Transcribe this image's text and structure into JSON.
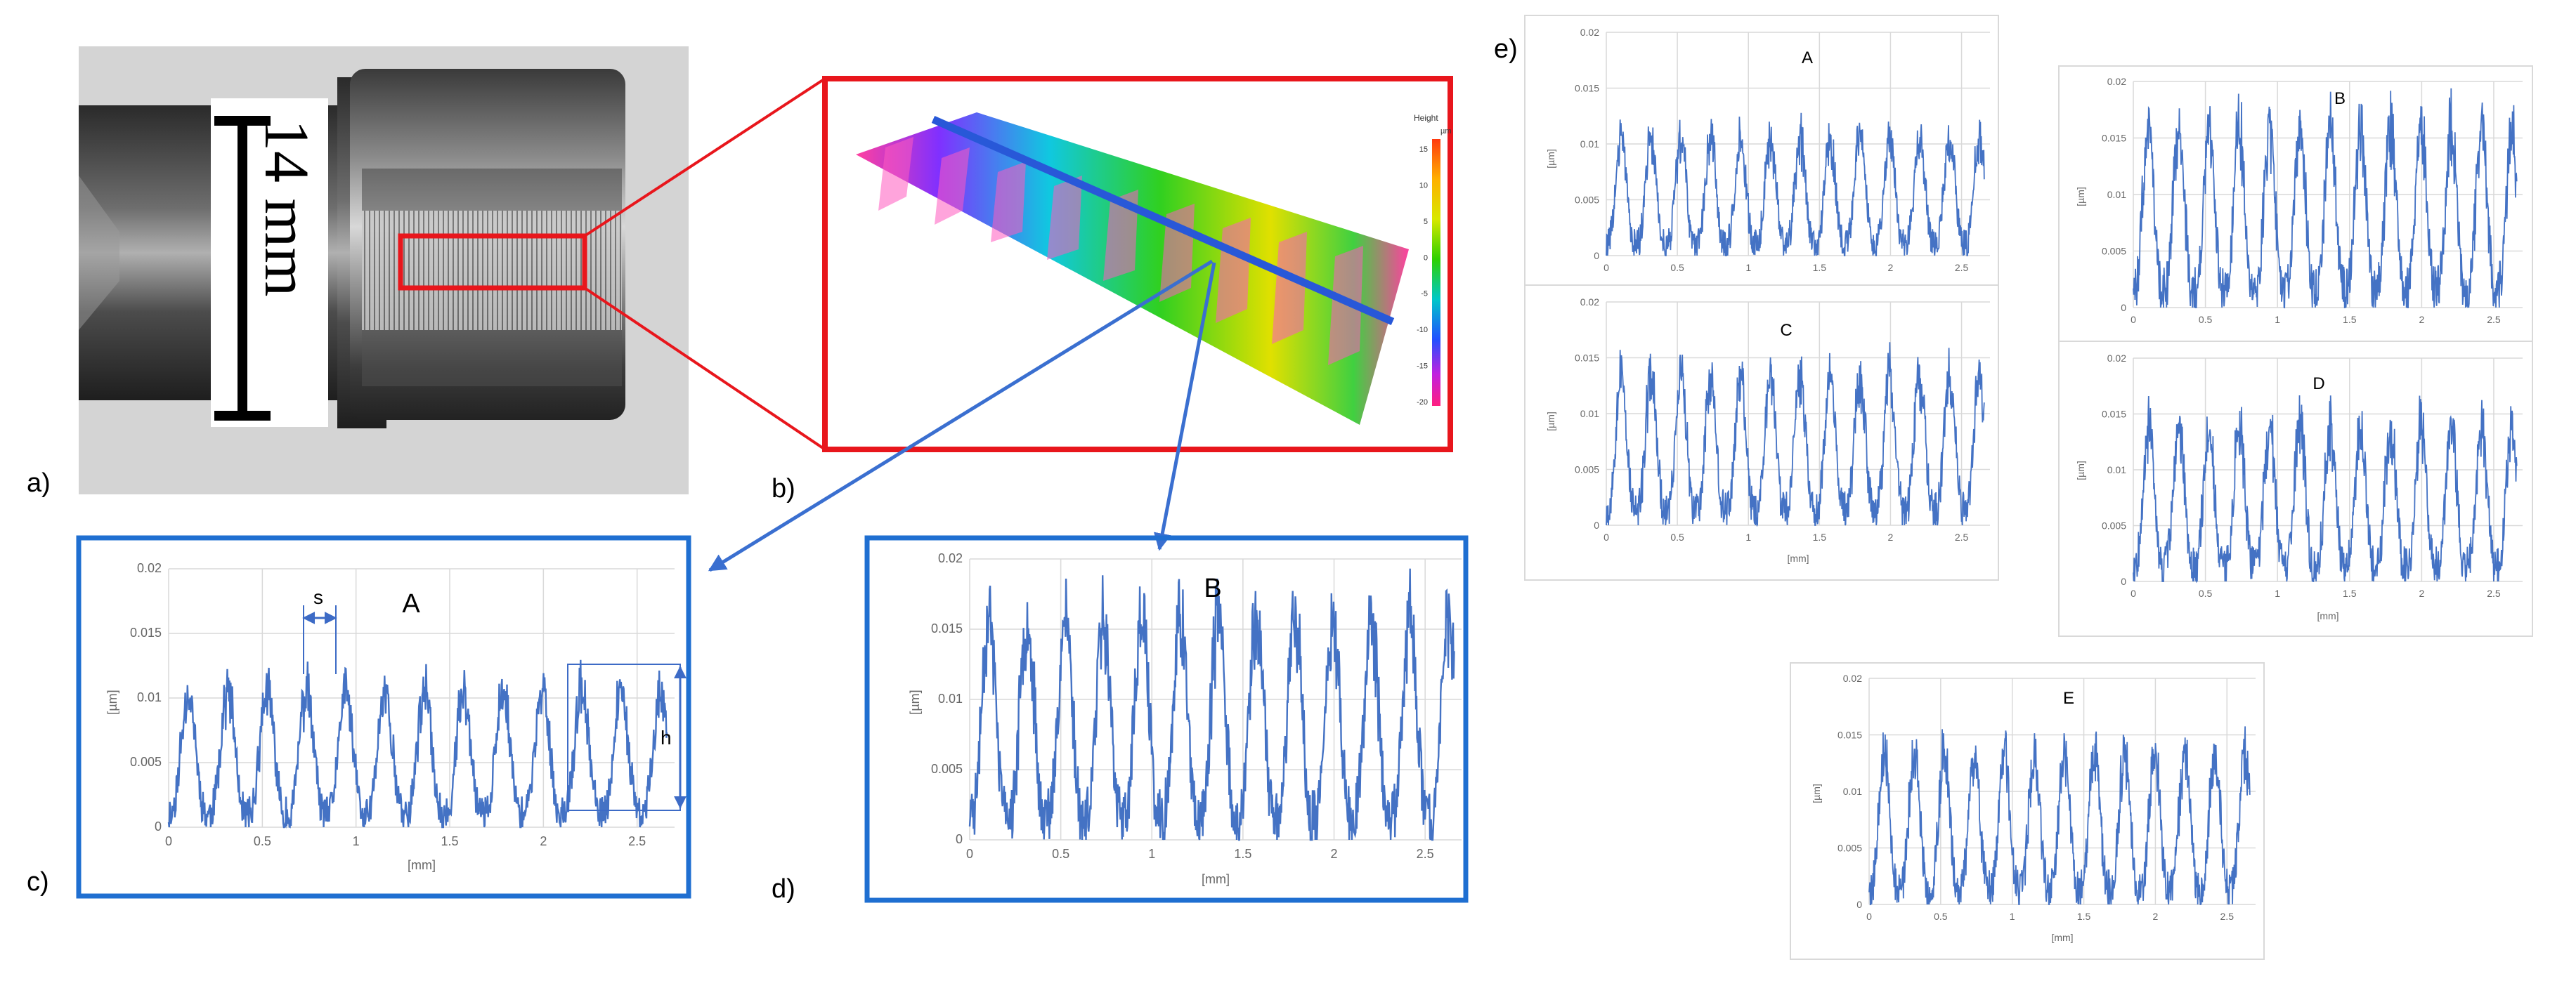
{
  "panel_labels": {
    "a": "a)",
    "b": "b)",
    "c": "c)",
    "d": "d)",
    "e": "e)"
  },
  "photo": {
    "scale_text": "14 mm"
  },
  "surface_map": {
    "legend_title": "Height",
    "legend_unit": "µm",
    "legend_ticks": [
      "15",
      "10",
      "5",
      "0",
      "-5",
      "-10",
      "-15",
      "-20"
    ]
  },
  "profile_annotations": {
    "spacing": "s",
    "height": "h"
  },
  "colors": {
    "line": "#4472C4",
    "frame_blue": "#1F6FD1",
    "frame_red": "#E8161C",
    "grid": "#D9D9D9",
    "profile_line": "#3D6BC6"
  },
  "chart_data": [
    {
      "id": "c",
      "type": "line",
      "title": "A",
      "ylabel": "[µm]",
      "xlabel": "[mm]",
      "x_ticks": [
        "0",
        "0.5",
        "1",
        "1.5",
        "2",
        "2.5"
      ],
      "y_ticks": [
        "0",
        "0.005",
        "0.01",
        "0.015",
        "0.02"
      ],
      "xlim": [
        0,
        2.7
      ],
      "ylim": [
        0,
        0.02
      ],
      "period_mm": 0.21,
      "amplitude_max": 0.0125
    },
    {
      "id": "d",
      "type": "line",
      "title": "B",
      "ylabel": "[µm]",
      "xlabel": "[mm]",
      "x_ticks": [
        "0",
        "0.5",
        "1",
        "1.5",
        "2",
        "2.5"
      ],
      "y_ticks": [
        "0",
        "0.005",
        "0.01",
        "0.015",
        "0.02"
      ],
      "xlim": [
        0,
        2.7
      ],
      "ylim": [
        0,
        0.02
      ],
      "period_mm": 0.21,
      "amplitude_max": 0.019
    },
    {
      "id": "eA",
      "type": "line",
      "title": "A",
      "ylabel": "[µm]",
      "xlabel": "",
      "x_ticks": [
        "0",
        "0.5",
        "1",
        "1.5",
        "2",
        "2.5"
      ],
      "y_ticks": [
        "0",
        "0.005",
        "0.01",
        "0.015",
        "0.02"
      ],
      "xlim": [
        0,
        2.7
      ],
      "ylim": [
        0,
        0.02
      ],
      "period_mm": 0.21,
      "amplitude_max": 0.0125
    },
    {
      "id": "eB",
      "type": "line",
      "title": "B",
      "ylabel": "[µm]",
      "xlabel": "",
      "x_ticks": [
        "0",
        "0.5",
        "1",
        "1.5",
        "2",
        "2.5"
      ],
      "y_ticks": [
        "0",
        "0.005",
        "0.01",
        "0.015",
        "0.02"
      ],
      "xlim": [
        0,
        2.7
      ],
      "ylim": [
        0,
        0.02
      ],
      "period_mm": 0.21,
      "amplitude_max": 0.019
    },
    {
      "id": "eC",
      "type": "line",
      "title": "C",
      "ylabel": "[µm]",
      "xlabel": "[mm]",
      "x_ticks": [
        "0",
        "0.5",
        "1",
        "1.5",
        "2",
        "2.5"
      ],
      "y_ticks": [
        "0",
        "0.005",
        "0.01",
        "0.015",
        "0.02"
      ],
      "xlim": [
        0,
        2.7
      ],
      "ylim": [
        0,
        0.02
      ],
      "period_mm": 0.21,
      "amplitude_max": 0.016
    },
    {
      "id": "eD",
      "type": "line",
      "title": "D",
      "ylabel": "[µm]",
      "xlabel": "[mm]",
      "x_ticks": [
        "0",
        "0.5",
        "1",
        "1.5",
        "2",
        "2.5"
      ],
      "y_ticks": [
        "0",
        "0.005",
        "0.01",
        "0.015",
        "0.02"
      ],
      "xlim": [
        0,
        2.7
      ],
      "ylim": [
        0,
        0.02
      ],
      "period_mm": 0.21,
      "amplitude_max": 0.0165
    },
    {
      "id": "eE",
      "type": "line",
      "title": "E",
      "ylabel": "[µm]",
      "xlabel": "[mm]",
      "x_ticks": [
        "0",
        "0.5",
        "1",
        "1.5",
        "2",
        "2.5"
      ],
      "y_ticks": [
        "0",
        "0.005",
        "0.01",
        "0.015",
        "0.02"
      ],
      "xlim": [
        0,
        2.7
      ],
      "ylim": [
        0,
        0.02
      ],
      "period_mm": 0.21,
      "amplitude_max": 0.016
    }
  ]
}
